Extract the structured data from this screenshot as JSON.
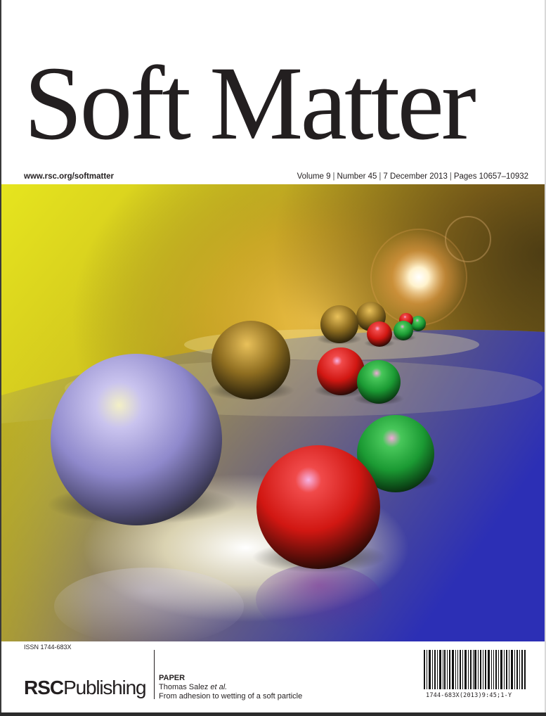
{
  "journal": {
    "title_word1": "Soft",
    "title_word2": "Matter",
    "url": "www.rsc.org/softmatter",
    "volume": "Volume 9",
    "number": "Number 45",
    "date": "7 December 2013",
    "pages": "Pages 10657–10932",
    "separator": "|"
  },
  "cover_art": {
    "description_icon": "spheres-on-reflective-surface-illustration",
    "colors": {
      "yellow": "#e3e21a",
      "blue": "#3b3cc8",
      "red": "#d61a14",
      "green": "#1fa036",
      "gold": "#c68a1a",
      "lavender": "#a9a3e6"
    }
  },
  "footer": {
    "issn": "ISSN 1744-683X",
    "publisher_part1": "RSC",
    "publisher_part2": "Publishing",
    "paper_kind": "PAPER",
    "authors_main": "Thomas Salez ",
    "authors_etal": "et al.",
    "paper_title": "From adhesion to wetting of a soft particle",
    "barcode_text": "1744-683X(2013)9:45;1-Y"
  }
}
